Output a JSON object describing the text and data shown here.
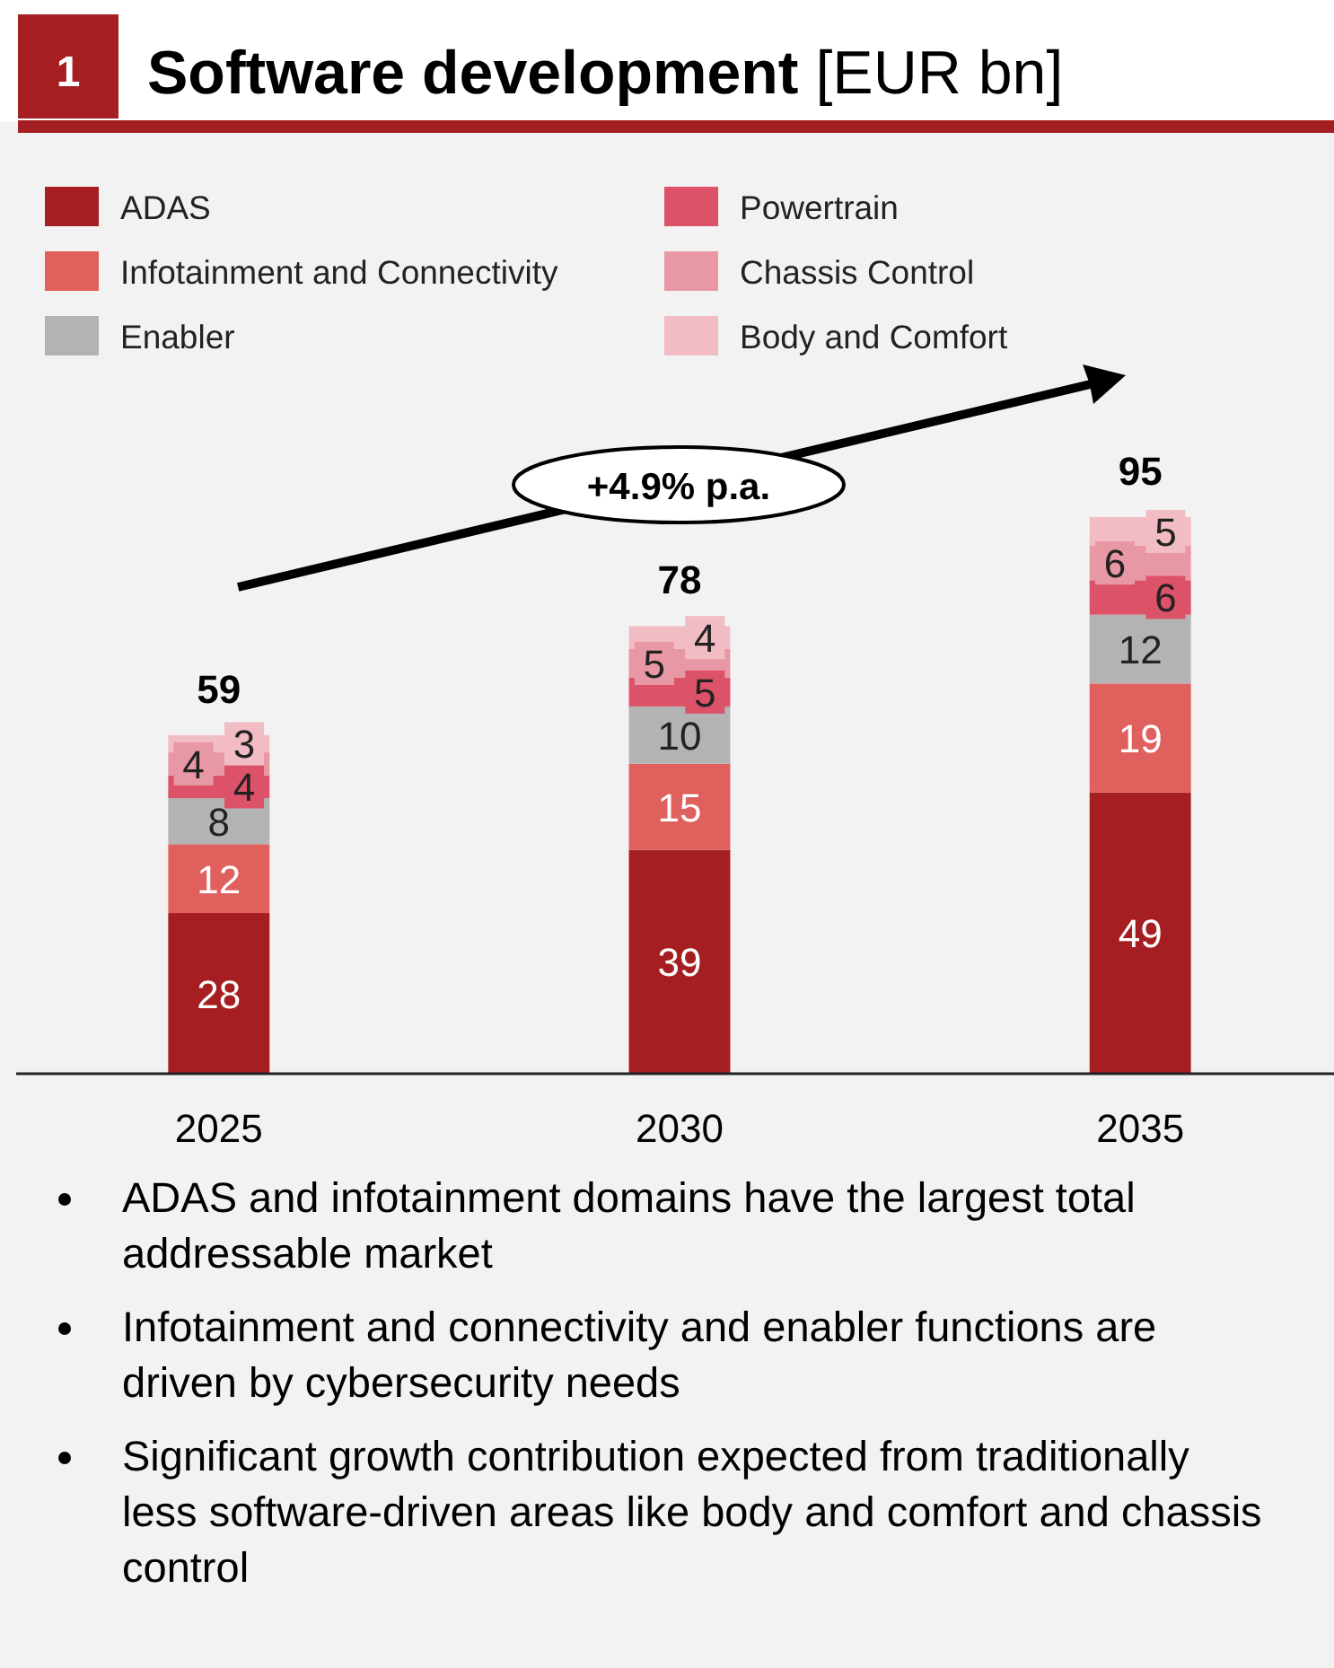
{
  "chart_data": {
    "type": "bar",
    "stacked": true,
    "title": "Software development",
    "subtitle": "[EUR bn]",
    "categories": [
      "2025",
      "2030",
      "2035"
    ],
    "series": [
      {
        "name": "ADAS",
        "color": "#a51f22",
        "values": [
          28,
          39,
          49
        ]
      },
      {
        "name": "Infotainment and Connectivity",
        "color": "#e0605e",
        "values": [
          12,
          15,
          19
        ]
      },
      {
        "name": "Enabler",
        "color": "#b3b3b3",
        "values": [
          8,
          10,
          12
        ]
      },
      {
        "name": "Powertrain",
        "color": "#dc5268",
        "values": [
          4,
          5,
          6
        ]
      },
      {
        "name": "Chassis Control",
        "color": "#e898a4",
        "values": [
          4,
          5,
          6
        ]
      },
      {
        "name": "Body and Comfort",
        "color": "#f2bcc4",
        "values": [
          3,
          4,
          5
        ]
      }
    ],
    "data_labels": true,
    "totals": [
      "59",
      "78",
      "95"
    ],
    "legend": "top",
    "annotations": [
      "1",
      "+4.9% p.a.",
      "ADAS and infotainment domains have the largest total addressable market",
      "Infotainment and connectivity and enabler functions are driven by cybersecurity needs",
      "Significant growth contribution expected from traditionally less software-driven areas like body and comfort and chassis control"
    ]
  }
}
